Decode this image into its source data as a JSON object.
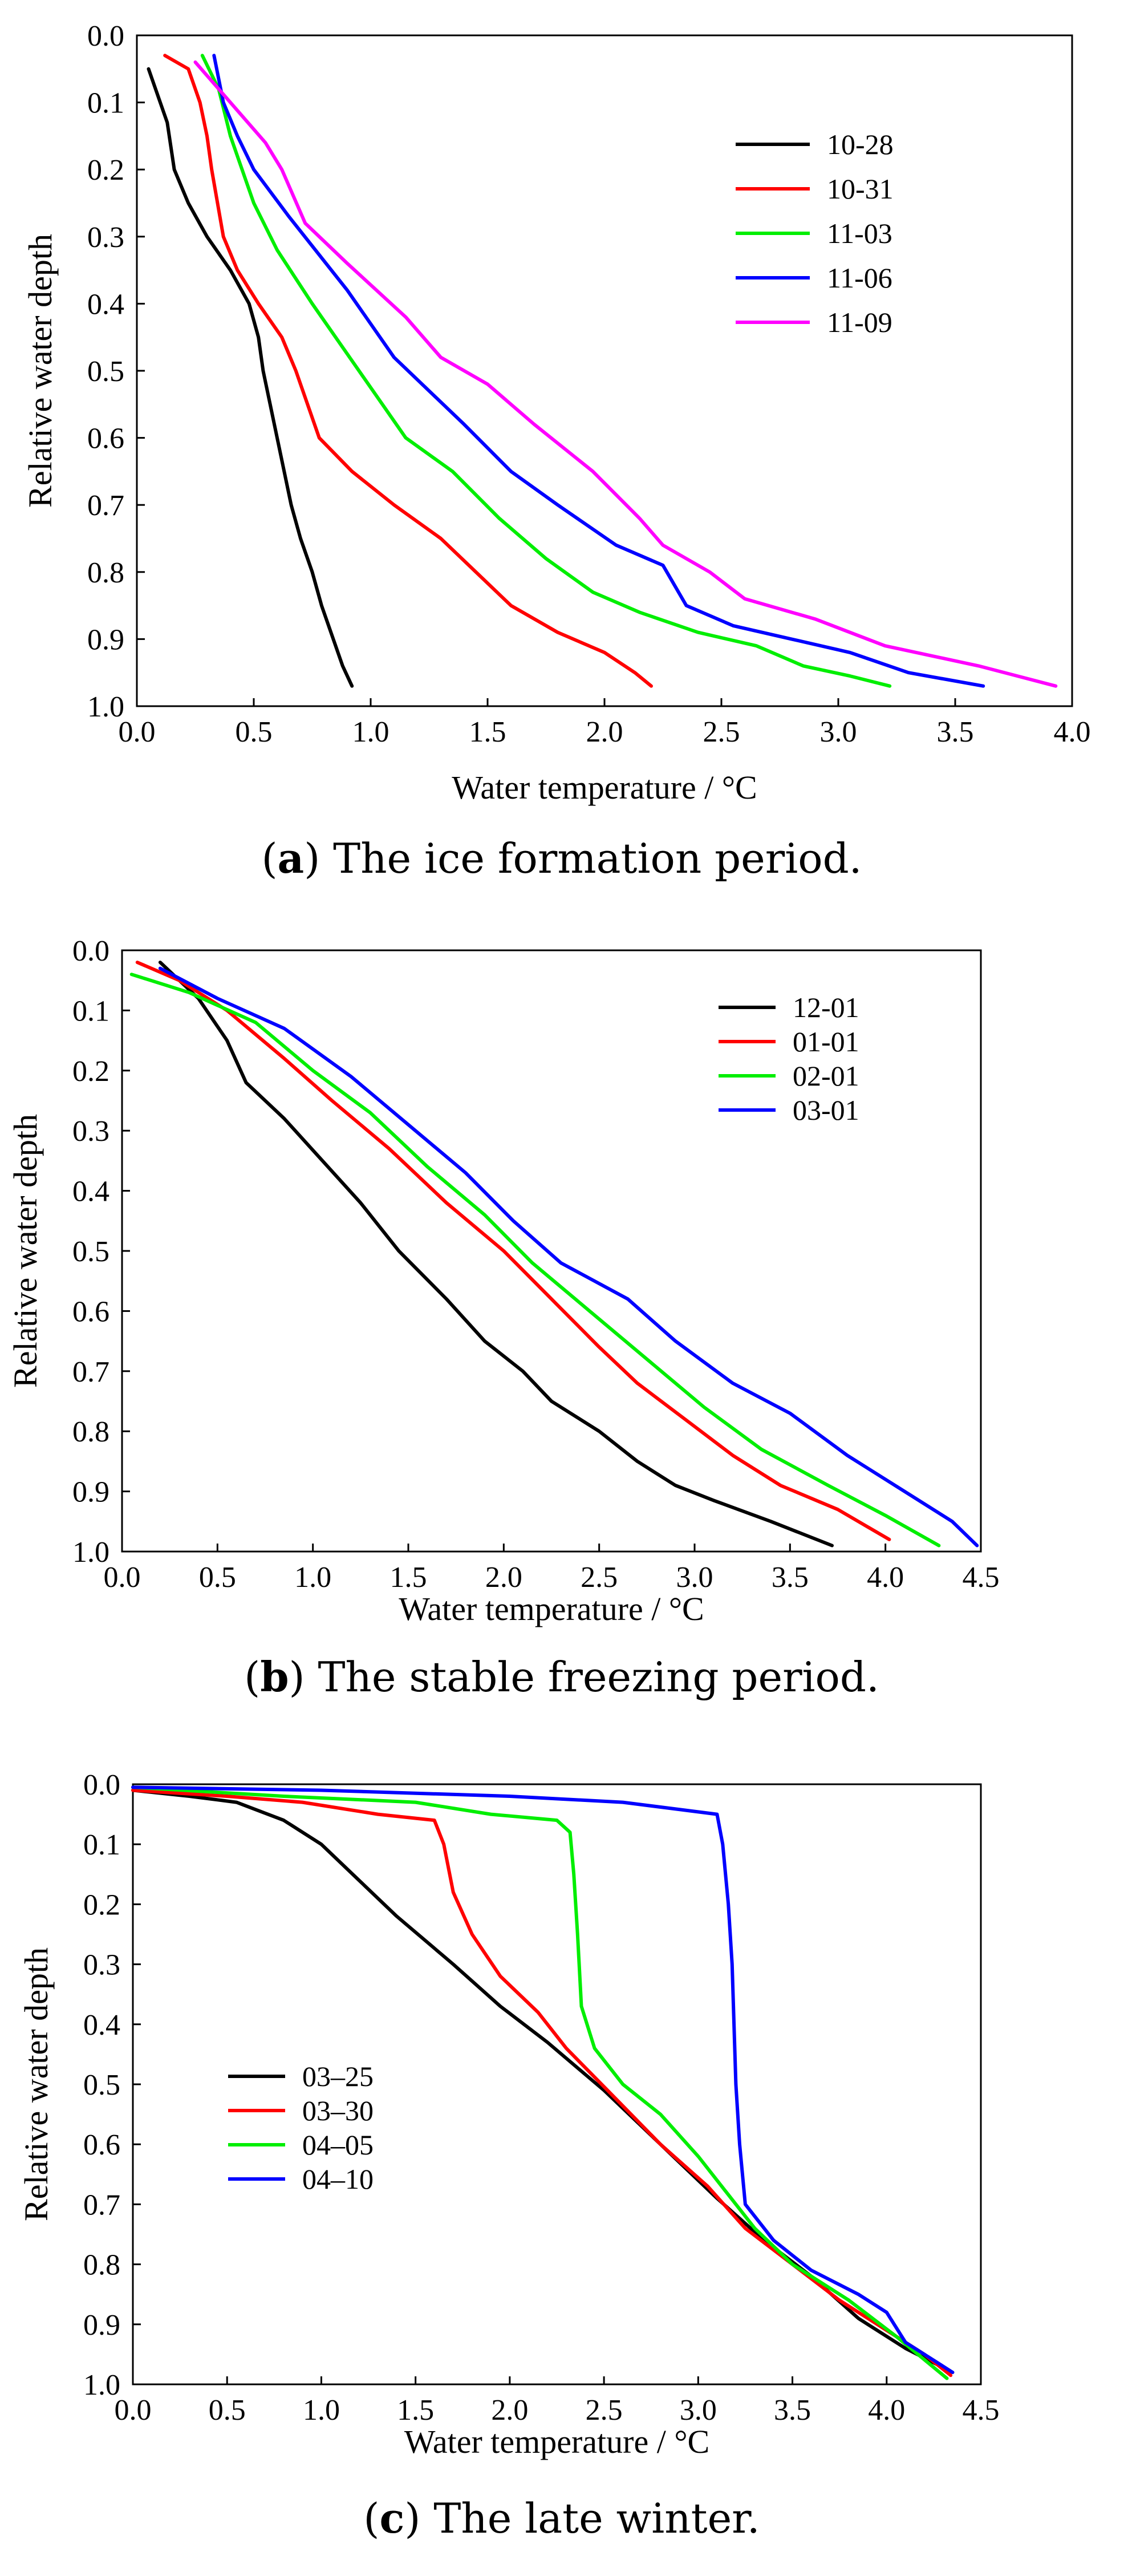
{
  "chart_data": [
    {
      "type": "line",
      "panel_label": "a",
      "caption": "The ice formation period.",
      "xlabel": "Water temperature / °C",
      "ylabel": "Relative water depth",
      "xlim": [
        0,
        4.0
      ],
      "ylim": [
        0,
        1.0
      ],
      "xticks": [
        "0.0",
        "0.5",
        "1.0",
        "1.5",
        "2.0",
        "2.5",
        "3.0",
        "3.5",
        "4.0"
      ],
      "yticks": [
        "0.0",
        "0.1",
        "0.2",
        "0.3",
        "0.4",
        "0.5",
        "0.6",
        "0.7",
        "0.8",
        "0.9",
        "1.0"
      ],
      "legend_position": "top-right",
      "series": [
        {
          "name": "10-28",
          "color": "#000000",
          "points": [
            [
              0.05,
              0.05
            ],
            [
              0.08,
              0.08
            ],
            [
              0.13,
              0.13
            ],
            [
              0.16,
              0.2
            ],
            [
              0.22,
              0.25
            ],
            [
              0.3,
              0.3
            ],
            [
              0.4,
              0.35
            ],
            [
              0.48,
              0.4
            ],
            [
              0.52,
              0.45
            ],
            [
              0.54,
              0.5
            ],
            [
              0.57,
              0.55
            ],
            [
              0.6,
              0.6
            ],
            [
              0.63,
              0.65
            ],
            [
              0.66,
              0.7
            ],
            [
              0.7,
              0.75
            ],
            [
              0.75,
              0.8
            ],
            [
              0.79,
              0.85
            ],
            [
              0.84,
              0.9
            ],
            [
              0.88,
              0.94
            ],
            [
              0.92,
              0.97
            ]
          ]
        },
        {
          "name": "10-31",
          "color": "#ff0000",
          "points": [
            [
              0.12,
              0.03
            ],
            [
              0.22,
              0.05
            ],
            [
              0.27,
              0.1
            ],
            [
              0.3,
              0.15
            ],
            [
              0.32,
              0.2
            ],
            [
              0.37,
              0.3
            ],
            [
              0.43,
              0.35
            ],
            [
              0.52,
              0.4
            ],
            [
              0.62,
              0.45
            ],
            [
              0.68,
              0.5
            ],
            [
              0.78,
              0.6
            ],
            [
              0.92,
              0.65
            ],
            [
              1.1,
              0.7
            ],
            [
              1.3,
              0.75
            ],
            [
              1.45,
              0.8
            ],
            [
              1.6,
              0.85
            ],
            [
              1.8,
              0.89
            ],
            [
              2.0,
              0.92
            ],
            [
              2.13,
              0.95
            ],
            [
              2.2,
              0.97
            ]
          ]
        },
        {
          "name": "11-03",
          "color": "#00ee00",
          "points": [
            [
              0.28,
              0.03
            ],
            [
              0.35,
              0.08
            ],
            [
              0.4,
              0.15
            ],
            [
              0.45,
              0.2
            ],
            [
              0.5,
              0.25
            ],
            [
              0.6,
              0.32
            ],
            [
              0.75,
              0.4
            ],
            [
              0.95,
              0.5
            ],
            [
              1.15,
              0.6
            ],
            [
              1.35,
              0.65
            ],
            [
              1.55,
              0.72
            ],
            [
              1.75,
              0.78
            ],
            [
              1.95,
              0.83
            ],
            [
              2.15,
              0.86
            ],
            [
              2.4,
              0.89
            ],
            [
              2.65,
              0.91
            ],
            [
              2.85,
              0.94
            ],
            [
              3.05,
              0.955
            ],
            [
              3.22,
              0.97
            ]
          ]
        },
        {
          "name": "11-06",
          "color": "#0000ff",
          "points": [
            [
              0.33,
              0.03
            ],
            [
              0.37,
              0.1
            ],
            [
              0.43,
              0.15
            ],
            [
              0.5,
              0.2
            ],
            [
              0.65,
              0.27
            ],
            [
              0.9,
              0.38
            ],
            [
              1.1,
              0.48
            ],
            [
              1.4,
              0.58
            ],
            [
              1.6,
              0.65
            ],
            [
              1.8,
              0.7
            ],
            [
              2.05,
              0.76
            ],
            [
              2.25,
              0.79
            ],
            [
              2.35,
              0.85
            ],
            [
              2.55,
              0.88
            ],
            [
              2.8,
              0.9
            ],
            [
              3.05,
              0.92
            ],
            [
              3.3,
              0.95
            ],
            [
              3.62,
              0.97
            ]
          ]
        },
        {
          "name": "11-09",
          "color": "#ff00ff",
          "points": [
            [
              0.25,
              0.04
            ],
            [
              0.45,
              0.12
            ],
            [
              0.55,
              0.16
            ],
            [
              0.62,
              0.2
            ],
            [
              0.72,
              0.28
            ],
            [
              0.9,
              0.34
            ],
            [
              1.15,
              0.42
            ],
            [
              1.3,
              0.48
            ],
            [
              1.5,
              0.52
            ],
            [
              1.7,
              0.58
            ],
            [
              1.95,
              0.65
            ],
            [
              2.15,
              0.72
            ],
            [
              2.25,
              0.76
            ],
            [
              2.45,
              0.8
            ],
            [
              2.6,
              0.84
            ],
            [
              2.9,
              0.87
            ],
            [
              3.2,
              0.91
            ],
            [
              3.6,
              0.94
            ],
            [
              3.93,
              0.97
            ]
          ]
        }
      ]
    },
    {
      "type": "line",
      "panel_label": "b",
      "caption": "The stable freezing period.",
      "xlabel": "Water temperature / °C",
      "ylabel": "Relative water depth",
      "xlim": [
        0,
        4.5
      ],
      "ylim": [
        0,
        1.0
      ],
      "xticks": [
        "0.0",
        "0.5",
        "1.0",
        "1.5",
        "2.0",
        "2.5",
        "3.0",
        "3.5",
        "4.0",
        "4.5"
      ],
      "yticks": [
        "0.0",
        "0.1",
        "0.2",
        "0.3",
        "0.4",
        "0.5",
        "0.6",
        "0.7",
        "0.8",
        "0.9",
        "1.0"
      ],
      "legend_position": "top-right",
      "series": [
        {
          "name": "12-01",
          "color": "#000000",
          "points": [
            [
              0.2,
              0.02
            ],
            [
              0.4,
              0.08
            ],
            [
              0.55,
              0.15
            ],
            [
              0.65,
              0.22
            ],
            [
              0.85,
              0.28
            ],
            [
              1.05,
              0.35
            ],
            [
              1.25,
              0.42
            ],
            [
              1.45,
              0.5
            ],
            [
              1.7,
              0.58
            ],
            [
              1.9,
              0.65
            ],
            [
              2.1,
              0.7
            ],
            [
              2.25,
              0.75
            ],
            [
              2.5,
              0.8
            ],
            [
              2.7,
              0.85
            ],
            [
              2.9,
              0.89
            ],
            [
              3.1,
              0.915
            ],
            [
              3.4,
              0.95
            ],
            [
              3.72,
              0.99
            ]
          ]
        },
        {
          "name": "01-01",
          "color": "#ff0000",
          "points": [
            [
              0.08,
              0.02
            ],
            [
              0.3,
              0.05
            ],
            [
              0.55,
              0.1
            ],
            [
              0.85,
              0.18
            ],
            [
              1.1,
              0.25
            ],
            [
              1.4,
              0.33
            ],
            [
              1.7,
              0.42
            ],
            [
              2.0,
              0.5
            ],
            [
              2.25,
              0.58
            ],
            [
              2.5,
              0.66
            ],
            [
              2.7,
              0.72
            ],
            [
              2.95,
              0.78
            ],
            [
              3.2,
              0.84
            ],
            [
              3.45,
              0.89
            ],
            [
              3.75,
              0.93
            ],
            [
              4.02,
              0.98
            ]
          ]
        },
        {
          "name": "02-01",
          "color": "#00ee00",
          "points": [
            [
              0.05,
              0.04
            ],
            [
              0.35,
              0.07
            ],
            [
              0.7,
              0.12
            ],
            [
              1.0,
              0.2
            ],
            [
              1.3,
              0.27
            ],
            [
              1.6,
              0.36
            ],
            [
              1.9,
              0.44
            ],
            [
              2.15,
              0.52
            ],
            [
              2.45,
              0.6
            ],
            [
              2.75,
              0.68
            ],
            [
              3.05,
              0.76
            ],
            [
              3.35,
              0.83
            ],
            [
              3.7,
              0.89
            ],
            [
              4.0,
              0.94
            ],
            [
              4.28,
              0.99
            ]
          ]
        },
        {
          "name": "03-01",
          "color": "#0000ff",
          "points": [
            [
              0.2,
              0.03
            ],
            [
              0.5,
              0.08
            ],
            [
              0.85,
              0.13
            ],
            [
              1.2,
              0.21
            ],
            [
              1.5,
              0.29
            ],
            [
              1.8,
              0.37
            ],
            [
              2.05,
              0.45
            ],
            [
              2.3,
              0.52
            ],
            [
              2.65,
              0.58
            ],
            [
              2.9,
              0.65
            ],
            [
              3.2,
              0.72
            ],
            [
              3.5,
              0.77
            ],
            [
              3.8,
              0.84
            ],
            [
              4.1,
              0.9
            ],
            [
              4.35,
              0.95
            ],
            [
              4.48,
              0.99
            ]
          ]
        }
      ]
    },
    {
      "type": "line",
      "panel_label": "c",
      "caption": "The late winter.",
      "xlabel": "Water temperature / °C",
      "ylabel": "Relative water depth",
      "xlim": [
        0,
        4.5
      ],
      "ylim": [
        0,
        1.0
      ],
      "xticks": [
        "0.0",
        "0.5",
        "1.0",
        "1.5",
        "2.0",
        "2.5",
        "3.0",
        "3.5",
        "4.0",
        "4.5"
      ],
      "yticks": [
        "0.0",
        "0.1",
        "0.2",
        "0.3",
        "0.4",
        "0.5",
        "0.6",
        "0.7",
        "0.8",
        "0.9",
        "1.0"
      ],
      "legend_position": "middle-left",
      "series": [
        {
          "name": "03–25",
          "color": "#000000",
          "points": [
            [
              0.0,
              0.01
            ],
            [
              0.3,
              0.02
            ],
            [
              0.55,
              0.03
            ],
            [
              0.8,
              0.06
            ],
            [
              1.0,
              0.1
            ],
            [
              1.2,
              0.16
            ],
            [
              1.4,
              0.22
            ],
            [
              1.7,
              0.3
            ],
            [
              1.95,
              0.37
            ],
            [
              2.2,
              0.43
            ],
            [
              2.5,
              0.51
            ],
            [
              2.8,
              0.6
            ],
            [
              3.1,
              0.69
            ],
            [
              3.35,
              0.76
            ],
            [
              3.6,
              0.82
            ],
            [
              3.85,
              0.89
            ],
            [
              4.1,
              0.94
            ],
            [
              4.35,
              0.98
            ]
          ]
        },
        {
          "name": "03–30",
          "color": "#ff0000",
          "points": [
            [
              0.0,
              0.01
            ],
            [
              0.5,
              0.02
            ],
            [
              0.9,
              0.03
            ],
            [
              1.3,
              0.05
            ],
            [
              1.6,
              0.06
            ],
            [
              1.65,
              0.1
            ],
            [
              1.7,
              0.18
            ],
            [
              1.8,
              0.25
            ],
            [
              1.95,
              0.32
            ],
            [
              2.15,
              0.38
            ],
            [
              2.3,
              0.44
            ],
            [
              2.55,
              0.52
            ],
            [
              2.8,
              0.6
            ],
            [
              3.05,
              0.67
            ],
            [
              3.25,
              0.74
            ],
            [
              3.5,
              0.8
            ],
            [
              3.75,
              0.86
            ],
            [
              4.0,
              0.91
            ],
            [
              4.2,
              0.95
            ],
            [
              4.34,
              0.985
            ]
          ]
        },
        {
          "name": "04–05",
          "color": "#00ee00",
          "points": [
            [
              0.0,
              0.005
            ],
            [
              0.8,
              0.02
            ],
            [
              1.5,
              0.03
            ],
            [
              1.9,
              0.05
            ],
            [
              2.25,
              0.06
            ],
            [
              2.32,
              0.08
            ],
            [
              2.34,
              0.15
            ],
            [
              2.36,
              0.25
            ],
            [
              2.38,
              0.37
            ],
            [
              2.45,
              0.44
            ],
            [
              2.6,
              0.5
            ],
            [
              2.8,
              0.55
            ],
            [
              3.0,
              0.62
            ],
            [
              3.15,
              0.68
            ],
            [
              3.3,
              0.74
            ],
            [
              3.5,
              0.8
            ],
            [
              3.8,
              0.86
            ],
            [
              4.05,
              0.92
            ],
            [
              4.32,
              0.99
            ]
          ]
        },
        {
          "name": "04–10",
          "color": "#0000ff",
          "points": [
            [
              0.0,
              0.005
            ],
            [
              1.0,
              0.01
            ],
            [
              2.0,
              0.02
            ],
            [
              2.6,
              0.03
            ],
            [
              3.1,
              0.05
            ],
            [
              3.13,
              0.1
            ],
            [
              3.16,
              0.2
            ],
            [
              3.18,
              0.3
            ],
            [
              3.19,
              0.4
            ],
            [
              3.2,
              0.5
            ],
            [
              3.22,
              0.6
            ],
            [
              3.25,
              0.7
            ],
            [
              3.4,
              0.76
            ],
            [
              3.6,
              0.81
            ],
            [
              3.85,
              0.85
            ],
            [
              4.0,
              0.88
            ],
            [
              4.1,
              0.93
            ],
            [
              4.25,
              0.96
            ],
            [
              4.35,
              0.98
            ]
          ]
        }
      ]
    }
  ]
}
